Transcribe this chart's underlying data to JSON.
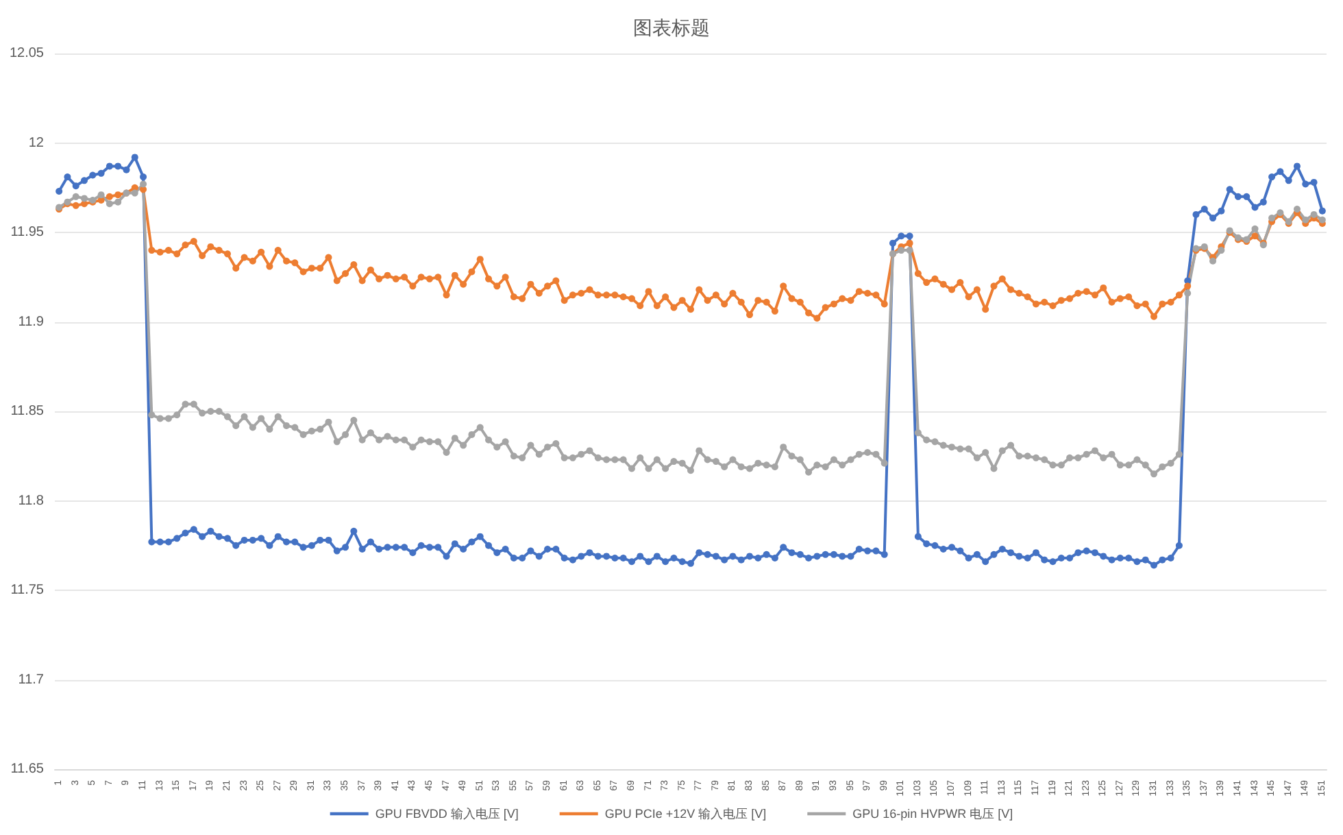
{
  "chart_data": {
    "type": "line",
    "title": "图表标题",
    "categories": [
      "1",
      null,
      "3",
      null,
      "5",
      null,
      "7",
      null,
      "9",
      null,
      "11",
      null,
      "13",
      null,
      "15",
      null,
      "17",
      null,
      "19",
      null,
      "21",
      null,
      "23",
      null,
      "25",
      null,
      "27",
      null,
      "29",
      null,
      "31",
      null,
      "33",
      null,
      "35",
      null,
      "37",
      null,
      "39",
      null,
      "41",
      null,
      "43",
      null,
      "45",
      null,
      "47",
      null,
      "49",
      null,
      "51",
      null,
      "53",
      null,
      "55",
      null,
      "57",
      null,
      "59",
      null,
      "61",
      null,
      "63",
      null,
      "65",
      null,
      "67",
      null,
      "69",
      null,
      "71",
      null,
      "73",
      null,
      "75",
      null,
      "77",
      null,
      "79",
      null,
      "81",
      null,
      "83",
      null,
      "85",
      null,
      "87",
      null,
      "89",
      null,
      "91",
      null,
      "93",
      null,
      "95",
      null,
      "97",
      null,
      "99",
      null,
      "101",
      null,
      "103",
      null,
      "105",
      null,
      "107",
      null,
      "109",
      null,
      "111",
      null,
      "113",
      null,
      "115",
      null,
      "117",
      null,
      "119",
      null,
      "121",
      null,
      "123",
      null,
      "125",
      null,
      "127",
      null,
      "129",
      null,
      "131",
      null,
      "133",
      null,
      "135",
      null,
      "137",
      null,
      "139",
      null,
      "141",
      null,
      "143",
      null,
      "145",
      null,
      "147",
      null,
      "149",
      null,
      "151"
    ],
    "series": [
      {
        "name": "GPU FBVDD 输入电压 [V]",
        "color": "#4472c4",
        "values": [
          11.973,
          11.981,
          11.976,
          11.979,
          11.982,
          11.983,
          11.987,
          11.987,
          11.985,
          11.992,
          11.981,
          11.777,
          11.777,
          11.777,
          11.779,
          11.782,
          11.784,
          11.78,
          11.783,
          11.78,
          11.779,
          11.775,
          11.778,
          11.778,
          11.779,
          11.775,
          11.78,
          11.777,
          11.777,
          11.774,
          11.775,
          11.778,
          11.778,
          11.772,
          11.774,
          11.783,
          11.773,
          11.777,
          11.773,
          11.774,
          11.774,
          11.774,
          11.771,
          11.775,
          11.774,
          11.774,
          11.769,
          11.776,
          11.773,
          11.777,
          11.78,
          11.775,
          11.771,
          11.773,
          11.768,
          11.768,
          11.772,
          11.769,
          11.773,
          11.773,
          11.768,
          11.767,
          11.769,
          11.771,
          11.769,
          11.769,
          11.768,
          11.768,
          11.766,
          11.769,
          11.766,
          11.769,
          11.766,
          11.768,
          11.766,
          11.765,
          11.771,
          11.77,
          11.769,
          11.767,
          11.769,
          11.767,
          11.769,
          11.768,
          11.77,
          11.768,
          11.774,
          11.771,
          11.77,
          11.768,
          11.769,
          11.77,
          11.77,
          11.769,
          11.769,
          11.773,
          11.772,
          11.772,
          11.77,
          11.944,
          11.948,
          11.948,
          11.78,
          11.776,
          11.775,
          11.773,
          11.774,
          11.772,
          11.768,
          11.77,
          11.766,
          11.77,
          11.773,
          11.771,
          11.769,
          11.768,
          11.771,
          11.767,
          11.766,
          11.768,
          11.768,
          11.771,
          11.772,
          11.771,
          11.769,
          11.767,
          11.768,
          11.768,
          11.766,
          11.767,
          11.764,
          11.767,
          11.768,
          11.775,
          11.923,
          11.96,
          11.963,
          11.958,
          11.962,
          11.974,
          11.97,
          11.97,
          11.964,
          11.967,
          11.981,
          11.984,
          11.979,
          11.987,
          11.977,
          11.978,
          11.962
        ]
      },
      {
        "name": "GPU PCIe +12V 输入电压 [V]",
        "color": "#ed7d31",
        "values": [
          11.963,
          11.966,
          11.965,
          11.966,
          11.967,
          11.968,
          11.97,
          11.971,
          11.972,
          11.975,
          11.974,
          11.94,
          11.939,
          11.94,
          11.938,
          11.943,
          11.945,
          11.937,
          11.942,
          11.94,
          11.938,
          11.93,
          11.936,
          11.934,
          11.939,
          11.931,
          11.94,
          11.934,
          11.933,
          11.928,
          11.93,
          11.93,
          11.936,
          11.923,
          11.927,
          11.932,
          11.923,
          11.929,
          11.924,
          11.926,
          11.924,
          11.925,
          11.92,
          11.925,
          11.924,
          11.925,
          11.915,
          11.926,
          11.921,
          11.928,
          11.935,
          11.924,
          11.92,
          11.925,
          11.914,
          11.913,
          11.921,
          11.916,
          11.92,
          11.923,
          11.912,
          11.915,
          11.916,
          11.918,
          11.915,
          11.915,
          11.915,
          11.914,
          11.913,
          11.909,
          11.917,
          11.909,
          11.914,
          11.908,
          11.912,
          11.907,
          11.918,
          11.912,
          11.915,
          11.91,
          11.916,
          11.911,
          11.904,
          11.912,
          11.911,
          11.906,
          11.92,
          11.913,
          11.911,
          11.905,
          11.902,
          11.908,
          11.91,
          11.913,
          11.912,
          11.917,
          11.916,
          11.915,
          11.91,
          11.938,
          11.942,
          11.944,
          11.927,
          11.922,
          11.924,
          11.921,
          11.918,
          11.922,
          11.914,
          11.918,
          11.907,
          11.92,
          11.924,
          11.918,
          11.916,
          11.914,
          11.91,
          11.911,
          11.909,
          11.912,
          11.913,
          11.916,
          11.917,
          11.915,
          11.919,
          11.911,
          11.913,
          11.914,
          11.909,
          11.91,
          11.903,
          11.91,
          11.911,
          11.915,
          11.92,
          11.94,
          11.941,
          11.936,
          11.942,
          11.95,
          11.946,
          11.945,
          11.948,
          11.944,
          11.956,
          11.96,
          11.955,
          11.961,
          11.955,
          11.958,
          11.955
        ]
      },
      {
        "name": "GPU 16-pin HVPWR 电压 [V]",
        "color": "#a5a5a5",
        "values": [
          11.964,
          11.967,
          11.97,
          11.969,
          11.968,
          11.971,
          11.966,
          11.967,
          11.972,
          11.972,
          11.977,
          11.848,
          11.846,
          11.846,
          11.848,
          11.854,
          11.854,
          11.849,
          11.85,
          11.85,
          11.847,
          11.842,
          11.847,
          11.841,
          11.846,
          11.84,
          11.847,
          11.842,
          11.841,
          11.837,
          11.839,
          11.84,
          11.844,
          11.833,
          11.837,
          11.845,
          11.834,
          11.838,
          11.834,
          11.836,
          11.834,
          11.834,
          11.83,
          11.834,
          11.833,
          11.833,
          11.827,
          11.835,
          11.831,
          11.837,
          11.841,
          11.834,
          11.83,
          11.833,
          11.825,
          11.824,
          11.831,
          11.826,
          11.83,
          11.832,
          11.824,
          11.824,
          11.826,
          11.828,
          11.824,
          11.823,
          11.823,
          11.823,
          11.818,
          11.824,
          11.818,
          11.823,
          11.818,
          11.822,
          11.821,
          11.817,
          11.828,
          11.823,
          11.822,
          11.819,
          11.823,
          11.819,
          11.818,
          11.821,
          11.82,
          11.819,
          11.83,
          11.825,
          11.823,
          11.816,
          11.82,
          11.819,
          11.823,
          11.82,
          11.823,
          11.826,
          11.827,
          11.826,
          11.821,
          11.938,
          11.94,
          11.94,
          11.838,
          11.834,
          11.833,
          11.831,
          11.83,
          11.829,
          11.829,
          11.824,
          11.827,
          11.818,
          11.828,
          11.831,
          11.825,
          11.825,
          11.824,
          11.823,
          11.82,
          11.82,
          11.824,
          11.824,
          11.826,
          11.828,
          11.824,
          11.826,
          11.82,
          11.82,
          11.823,
          11.82,
          11.815,
          11.819,
          11.821,
          11.826,
          11.916,
          11.941,
          11.942,
          11.934,
          11.94,
          11.951,
          11.947,
          11.946,
          11.952,
          11.943,
          11.958,
          11.961,
          11.956,
          11.963,
          11.957,
          11.96,
          11.957
        ]
      }
    ],
    "ylim": [
      11.65,
      12.05
    ],
    "yticks": [
      11.65,
      11.7,
      11.75,
      11.8,
      11.85,
      11.9,
      11.95,
      12,
      12.05
    ],
    "grid": "y",
    "legend": "bottom",
    "marker": "circle",
    "line_style": "solid"
  }
}
